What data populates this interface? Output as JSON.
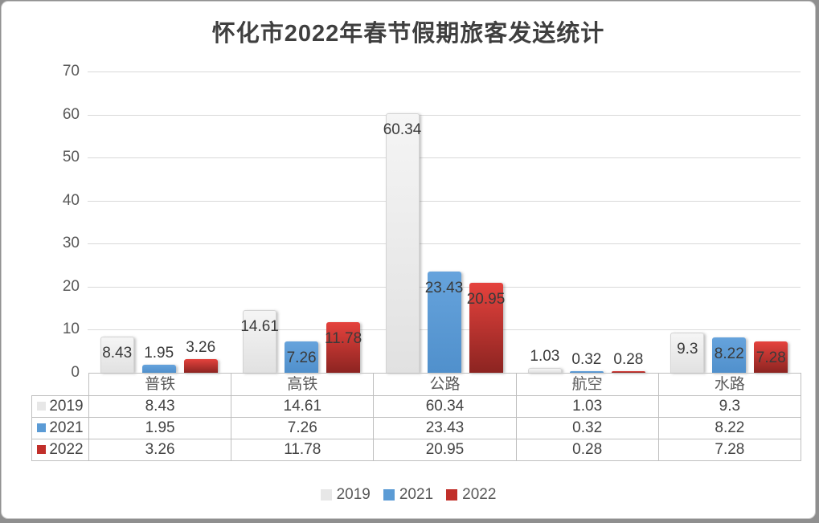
{
  "chart_data": {
    "type": "bar",
    "title": "怀化市2022年春节假期旅客发送统计",
    "categories": [
      "普铁",
      "高铁",
      "公路",
      "航空",
      "水路"
    ],
    "series": [
      {
        "name": "2019",
        "values": [
          8.43,
          14.61,
          60.34,
          1.03,
          9.3
        ],
        "labels": [
          "8.43",
          "14.61",
          "60.34",
          "1.03",
          "9.3"
        ],
        "swatch_color": "#e7e7e7"
      },
      {
        "name": "2021",
        "values": [
          1.95,
          7.26,
          23.43,
          0.32,
          8.22
        ],
        "labels": [
          "1.95",
          "7.26",
          "23.43",
          "0.32",
          "8.22"
        ],
        "swatch_color": "#5b9bd5"
      },
      {
        "name": "2022",
        "values": [
          3.26,
          11.78,
          20.95,
          0.28,
          7.28
        ],
        "labels": [
          "3.26",
          "11.78",
          "20.95",
          "0.28",
          "7.28"
        ],
        "swatch_color": "#c12f2a"
      }
    ],
    "y_axis": {
      "min": 0,
      "max": 70,
      "tick_step": 10,
      "tick_labels": [
        "70",
        "60",
        "50",
        "40",
        "30",
        "20",
        "10",
        "0"
      ]
    },
    "grid": true,
    "legend_position": "bottom",
    "has_data_table": true,
    "colors": {
      "series_2019_bar": "#e9e9e9",
      "series_2021_bar": "#5b9bd5",
      "series_2022_bar_top": "#e5423d",
      "series_2022_bar_bottom": "#8c2421",
      "gridline": "#d9d9d9",
      "axis_text": "#595959",
      "label_text": "#3a3a3a",
      "table_border": "#bfbfbf"
    }
  }
}
